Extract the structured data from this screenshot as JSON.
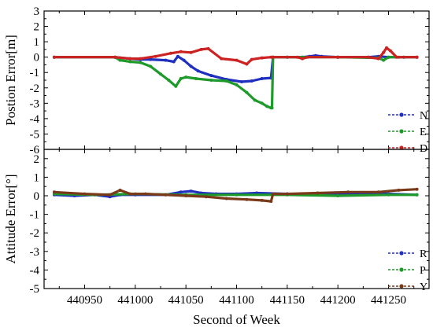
{
  "chart_data": [
    {
      "type": "line",
      "ylabel": "Postion Error[m]",
      "ylim": [
        -6,
        3
      ],
      "yticks": [
        3,
        2,
        1,
        0,
        -1,
        -2,
        -3,
        -4,
        -5,
        -6
      ],
      "xlim": [
        440910,
        441290
      ],
      "grid": false,
      "legend_position": "bottom-right",
      "series": [
        {
          "name": "N",
          "color": "#1f2fbf",
          "style": "dash-dot-marker",
          "x": [
            440920,
            440980,
            440995,
            441005,
            441015,
            441030,
            441038,
            441042,
            441048,
            441055,
            441062,
            441075,
            441090,
            441105,
            441115,
            441125,
            441134,
            441136,
            441150,
            441165,
            441172,
            441178,
            441184,
            441200,
            441230,
            441240,
            441250,
            441265,
            441278
          ],
          "y": [
            0,
            0,
            -0.1,
            -0.15,
            -0.15,
            -0.2,
            -0.3,
            0.05,
            -0.2,
            -0.6,
            -0.9,
            -1.2,
            -1.45,
            -1.6,
            -1.55,
            -1.4,
            -1.35,
            0,
            0,
            0,
            0.05,
            0.1,
            0.05,
            0,
            0,
            0.05,
            0,
            0,
            0
          ]
        },
        {
          "name": "E",
          "color": "#1d9a2a",
          "style": "dash-dot-marker",
          "x": [
            440920,
            440980,
            440985,
            440995,
            441005,
            441015,
            441025,
            441033,
            441040,
            441045,
            441050,
            441060,
            441075,
            441090,
            441100,
            441110,
            441118,
            441125,
            441130,
            441134,
            441135,
            441136,
            441150,
            441165,
            441200,
            441240,
            441245,
            441250,
            441260,
            441278
          ],
          "y": [
            0,
            0,
            -0.2,
            -0.3,
            -0.35,
            -0.6,
            -1.1,
            -1.5,
            -1.9,
            -1.4,
            -1.3,
            -1.4,
            -1.5,
            -1.55,
            -1.8,
            -2.3,
            -2.8,
            -3.0,
            -3.2,
            -3.3,
            -3.3,
            0,
            0,
            0,
            0,
            -0.05,
            -0.2,
            0,
            0,
            0
          ]
        },
        {
          "name": "D",
          "color": "#cc2222",
          "style": "dash-dot-marker",
          "x": [
            440920,
            440980,
            440995,
            441005,
            441020,
            441035,
            441045,
            441055,
            441065,
            441072,
            441085,
            441100,
            441110,
            441115,
            441125,
            441134,
            441136,
            441160,
            441165,
            441170,
            441200,
            441230,
            441240,
            441245,
            441248,
            441252,
            441258,
            441278
          ],
          "y": [
            0,
            0,
            -0.1,
            -0.1,
            0.05,
            0.25,
            0.35,
            0.3,
            0.5,
            0.55,
            -0.1,
            -0.2,
            -0.45,
            -0.15,
            -0.05,
            0,
            0,
            0,
            -0.1,
            0,
            0,
            0,
            -0.1,
            0.3,
            0.6,
            0.4,
            0,
            0
          ]
        }
      ]
    },
    {
      "type": "line",
      "xlabel": "Second of Week",
      "ylabel": "Attitude Error[°]",
      "ylim": [
        -5,
        2.5
      ],
      "yticks": [
        2,
        1,
        0,
        -1,
        -2,
        -3,
        -4,
        -5
      ],
      "xlim": [
        440910,
        441290
      ],
      "xticks": [
        440950,
        441000,
        441050,
        441100,
        441150,
        441200,
        441250
      ],
      "grid": false,
      "legend_position": "bottom-right",
      "series": [
        {
          "name": "R",
          "color": "#1f2fbf",
          "style": "dash-dot-marker",
          "x": [
            440920,
            440940,
            440960,
            440975,
            440985,
            441000,
            441030,
            441045,
            441055,
            441065,
            441080,
            441100,
            441120,
            441150,
            441200,
            441250,
            441278
          ],
          "y": [
            0.05,
            0.0,
            0.05,
            -0.05,
            0.05,
            0.05,
            0.05,
            0.2,
            0.25,
            0.15,
            0.1,
            0.1,
            0.15,
            0.1,
            0.1,
            0.1,
            0.05
          ]
        },
        {
          "name": "P",
          "color": "#1d9a2a",
          "style": "dash-dot-marker",
          "x": [
            440920,
            440960,
            441000,
            441050,
            441100,
            441150,
            441200,
            441250,
            441278
          ],
          "y": [
            0.1,
            0.05,
            0.1,
            0.05,
            0.05,
            0.05,
            0.0,
            0.05,
            0.05
          ]
        },
        {
          "name": "Y",
          "color": "#7a3a1a",
          "style": "dash-dot-marker",
          "x": [
            440920,
            440950,
            440975,
            440985,
            440995,
            441010,
            441030,
            441050,
            441070,
            441090,
            441110,
            441125,
            441134,
            441136,
            441150,
            441180,
            441210,
            441240,
            441260,
            441278
          ],
          "y": [
            0.2,
            0.1,
            0.05,
            0.3,
            0.1,
            0.1,
            0.05,
            0.0,
            -0.05,
            -0.15,
            -0.2,
            -0.25,
            -0.3,
            0.1,
            0.1,
            0.15,
            0.2,
            0.2,
            0.3,
            0.35
          ]
        }
      ]
    }
  ]
}
